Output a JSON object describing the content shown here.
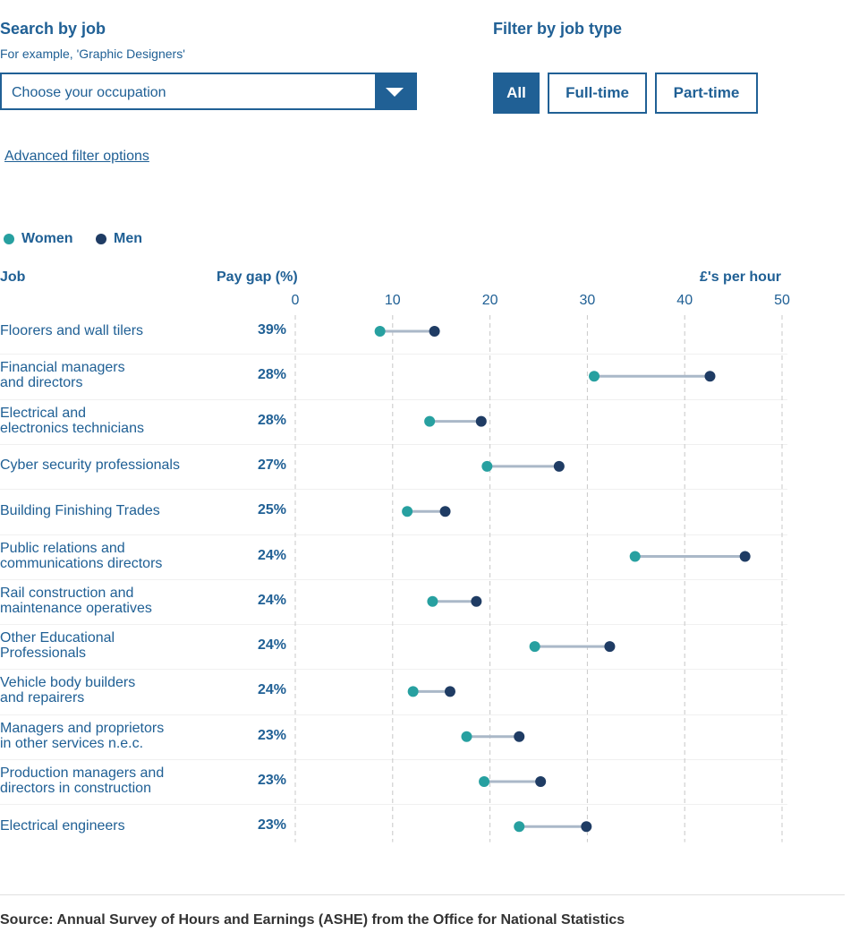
{
  "search": {
    "title": "Search by job",
    "hint": "For example, 'Graphic Designers'",
    "select_value": "Choose your occupation"
  },
  "filter": {
    "title": "Filter by job type",
    "options": [
      "All",
      "Full-time",
      "Part-time"
    ],
    "selected": "All"
  },
  "advanced_link": "Advanced filter options",
  "legend": {
    "women": "Women",
    "men": "Men"
  },
  "colors": {
    "women": "#27a0a0",
    "men": "#1f3c64",
    "connector": "#aab8c8",
    "primary": "#206095"
  },
  "columns": {
    "job": "Job",
    "pay_gap": "Pay gap (%)",
    "axis_title": "£'s per hour"
  },
  "chart_data": {
    "type": "dumbbell",
    "xlabel": "£'s per hour",
    "xlim": [
      0,
      50
    ],
    "xticks": [
      0,
      10,
      20,
      30,
      40,
      50
    ],
    "grid": true,
    "legend_placement": "top-left",
    "series": [
      {
        "name": "Women"
      },
      {
        "name": "Men"
      }
    ],
    "rows": [
      {
        "label": [
          "Floorers and wall tilers"
        ],
        "gap": "39%",
        "women": 8.7,
        "men": 14.3
      },
      {
        "label": [
          "Financial managers",
          "and directors"
        ],
        "gap": "28%",
        "women": 30.7,
        "men": 42.6
      },
      {
        "label": [
          "Electrical and",
          "electronics technicians"
        ],
        "gap": "28%",
        "women": 13.8,
        "men": 19.1
      },
      {
        "label": [
          "Cyber security professionals"
        ],
        "gap": "27%",
        "women": 19.7,
        "men": 27.1
      },
      {
        "label": [
          "Building Finishing Trades"
        ],
        "gap": "25%",
        "women": 11.5,
        "men": 15.4
      },
      {
        "label": [
          "Public relations and",
          "communications directors"
        ],
        "gap": "24%",
        "women": 34.9,
        "men": 46.2
      },
      {
        "label": [
          "Rail construction and",
          "maintenance operatives"
        ],
        "gap": "24%",
        "women": 14.1,
        "men": 18.6
      },
      {
        "label": [
          "Other Educational",
          "Professionals"
        ],
        "gap": "24%",
        "women": 24.6,
        "men": 32.3
      },
      {
        "label": [
          "Vehicle body builders",
          "and repairers"
        ],
        "gap": "24%",
        "women": 12.1,
        "men": 15.9
      },
      {
        "label": [
          "Managers and proprietors",
          "in other services n.e.c."
        ],
        "gap": "23%",
        "women": 17.6,
        "men": 23.0
      },
      {
        "label": [
          "Production managers and",
          "directors in construction"
        ],
        "gap": "23%",
        "women": 19.4,
        "men": 25.2
      },
      {
        "label": [
          "Electrical engineers"
        ],
        "gap": "23%",
        "women": 23.0,
        "men": 29.9
      }
    ]
  },
  "source": "Source: Annual Survey of Hours and Earnings (ASHE) from the Office for National Statistics"
}
